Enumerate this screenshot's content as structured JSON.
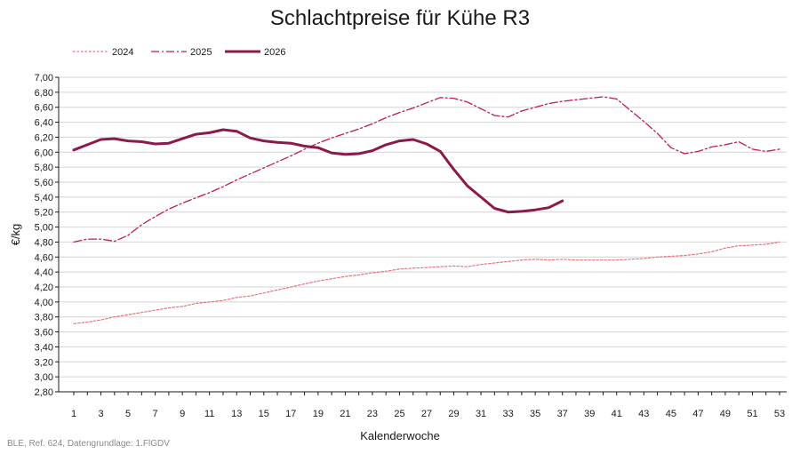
{
  "chart_data": {
    "type": "line",
    "title": "Schlachtpreise für Kühe R3",
    "xlabel": "Kalenderwoche",
    "ylabel": "€/kg",
    "xlim": [
      1,
      53
    ],
    "ylim": [
      2.8,
      7.0
    ],
    "y_ticks": [
      "2,80",
      "3,00",
      "3,20",
      "3,40",
      "3,60",
      "3,80",
      "4,00",
      "4,20",
      "4,40",
      "4,60",
      "4,80",
      "5,00",
      "5,20",
      "5,40",
      "5,60",
      "5,80",
      "6,00",
      "6,20",
      "6,40",
      "6,60",
      "6,80",
      "7,00"
    ],
    "x_ticks": [
      "1",
      "3",
      "5",
      "7",
      "9",
      "11",
      "13",
      "15",
      "17",
      "19",
      "21",
      "23",
      "25",
      "27",
      "29",
      "31",
      "33",
      "35",
      "37",
      "39",
      "41",
      "43",
      "45",
      "47",
      "49",
      "51",
      "53"
    ],
    "grid": "horizontal",
    "legend_position": "top-left",
    "series": [
      {
        "name": "2024",
        "color": "#e8737f",
        "style": "dotted",
        "x": [
          1,
          2,
          3,
          4,
          5,
          6,
          7,
          8,
          9,
          10,
          11,
          12,
          13,
          14,
          15,
          16,
          17,
          18,
          19,
          20,
          21,
          22,
          23,
          24,
          25,
          26,
          27,
          28,
          29,
          30,
          31,
          32,
          33,
          34,
          35,
          36,
          37,
          38,
          39,
          40,
          41,
          42,
          43,
          44,
          45,
          46,
          47,
          48,
          49,
          50,
          51,
          52,
          53
        ],
        "values": [
          3.71,
          3.73,
          3.76,
          3.8,
          3.83,
          3.86,
          3.89,
          3.92,
          3.94,
          3.98,
          4.0,
          4.02,
          4.06,
          4.08,
          4.12,
          4.16,
          4.2,
          4.24,
          4.28,
          4.31,
          4.34,
          4.36,
          4.39,
          4.41,
          4.44,
          4.45,
          4.46,
          4.47,
          4.48,
          4.47,
          4.5,
          4.52,
          4.54,
          4.56,
          4.57,
          4.56,
          4.57,
          4.56,
          4.56,
          4.56,
          4.56,
          4.57,
          4.58,
          4.6,
          4.61,
          4.62,
          4.64,
          4.67,
          4.72,
          4.75,
          4.76,
          4.77,
          4.8
        ]
      },
      {
        "name": "2025",
        "color": "#c2185b",
        "style": "dashdot",
        "x": [
          1,
          2,
          3,
          4,
          5,
          6,
          7,
          8,
          9,
          10,
          11,
          12,
          13,
          14,
          15,
          16,
          17,
          18,
          19,
          20,
          21,
          22,
          23,
          24,
          25,
          26,
          27,
          28,
          29,
          30,
          31,
          32,
          33,
          34,
          35,
          36,
          37,
          38,
          39,
          40,
          41,
          42,
          43,
          44,
          45,
          46,
          47,
          48,
          49,
          50,
          51,
          52,
          53
        ],
        "values": [
          4.8,
          4.84,
          4.84,
          4.81,
          4.89,
          5.03,
          5.14,
          5.24,
          5.32,
          5.39,
          5.46,
          5.54,
          5.63,
          5.71,
          5.79,
          5.87,
          5.95,
          6.04,
          6.12,
          6.19,
          6.25,
          6.31,
          6.38,
          6.46,
          6.53,
          6.59,
          6.66,
          6.73,
          6.72,
          6.67,
          6.58,
          6.49,
          6.47,
          6.55,
          6.6,
          6.65,
          6.68,
          6.7,
          6.72,
          6.74,
          6.71,
          6.56,
          6.41,
          6.25,
          6.06,
          5.98,
          6.01,
          6.07,
          6.1,
          6.14,
          6.04,
          6.01,
          6.04
        ]
      },
      {
        "name": "2026",
        "color": "#8b1a4a",
        "style": "solid",
        "x": [
          1,
          2,
          3,
          4,
          5,
          6,
          7,
          8,
          9,
          10,
          11,
          12,
          13,
          14,
          15,
          16,
          17,
          18,
          19,
          20,
          21,
          22,
          23,
          24,
          25,
          26,
          27,
          28,
          29,
          30,
          31,
          32,
          33,
          34,
          35,
          36,
          37
        ],
        "values": [
          6.03,
          6.1,
          6.17,
          6.18,
          6.15,
          6.14,
          6.11,
          6.12,
          6.18,
          6.24,
          6.26,
          6.3,
          6.28,
          6.19,
          6.15,
          6.13,
          6.12,
          6.08,
          6.06,
          5.99,
          5.97,
          5.98,
          6.02,
          6.1,
          6.15,
          6.17,
          6.11,
          6.01,
          5.77,
          5.55,
          5.4,
          5.25,
          5.2,
          5.21,
          5.23,
          5.26,
          5.35
        ]
      }
    ],
    "source_note": "BLE, Ref. 624, Datengrundlage: 1.FlGDV"
  }
}
